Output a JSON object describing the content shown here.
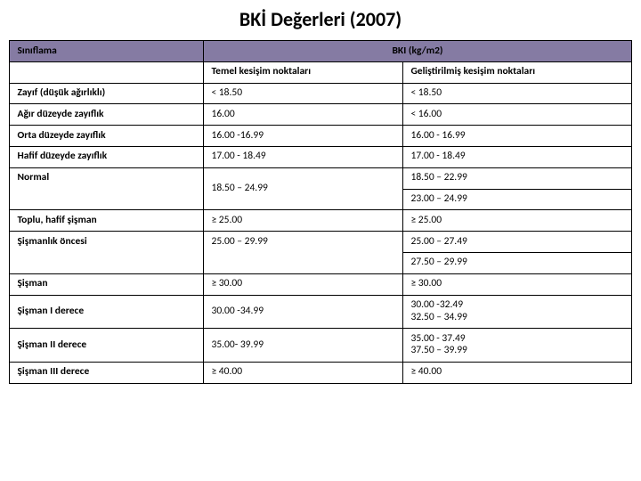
{
  "title": "BKİ Değerleri (2007)",
  "header": {
    "classification": "Sınıflama",
    "bki": "BKI (kg/m2)",
    "basic_cut": "Temel kesişim noktaları",
    "adv_cut": "Geliştirilmiş kesişim noktaları"
  },
  "rows": {
    "zayif": {
      "label": "Zayıf (düşük ağırlıklı)",
      "basic": "< 18.50",
      "adv": "< 18.50"
    },
    "agir": {
      "label": "Ağır düzeyde zayıflık",
      "basic": "16.00",
      "adv": "< 16.00"
    },
    "orta": {
      "label": "Orta düzeyde zayıflık",
      "basic": "16.00 -16.99",
      "adv": "16.00 - 16.99"
    },
    "hafif": {
      "label": "Hafif düzeyde zayıflık",
      "basic": "17.00 - 18.49",
      "adv": "17.00 - 18.49"
    },
    "normal": {
      "label": "Normal",
      "basic": "18.50 – 24.99",
      "adv1": "18.50 – 22.99",
      "adv2": "23.00 – 24.99"
    },
    "toplu": {
      "label": "Toplu, hafif şişman",
      "basic": "≥ 25.00",
      "adv": " ≥ 25.00"
    },
    "oncesi": {
      "label": "Şişmanlık öncesi",
      "basic": "25.00 – 29.99",
      "adv1": "25.00 – 27.49",
      "adv2": "27.50 – 29.99"
    },
    "sisman": {
      "label": "Şişman",
      "basic": "≥ 30.00",
      "adv": "≥ 30.00"
    },
    "s1": {
      "label": "Şişman I derece",
      "basic": "30.00 -34.99",
      "adv": "30.00 -32.49\n32.50 – 34.99"
    },
    "s2": {
      "label": "Şişman II derece",
      "basic": "35.00- 39.99",
      "adv": "35.00 - 37.49\n37.50 – 39.99"
    },
    "s3": {
      "label": "Şişman III derece",
      "basic": " ≥ 40.00",
      "adv": " ≥ 40.00"
    }
  },
  "colors": {
    "header_bg": "#857ba3",
    "border": "#000000",
    "text": "#000000"
  },
  "fontsize": {
    "title": 22,
    "body": 11.5
  }
}
